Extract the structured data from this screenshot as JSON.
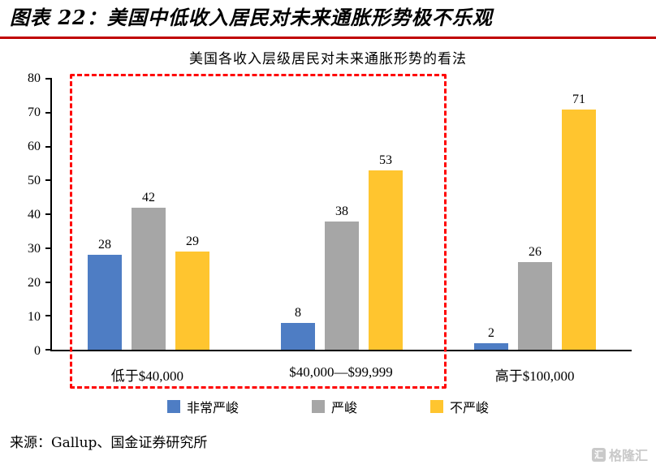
{
  "header": {
    "title": "图表 22：美国中低收入居民对未来通胀形势极不乐观"
  },
  "chart_data": {
    "type": "bar",
    "title": "美国各收入层级居民对未来通胀形势的看法",
    "categories": [
      "低于$40,000",
      "$40,000—$99,999",
      "高于$100,000"
    ],
    "series": [
      {
        "name": "非常严峻",
        "color": "#4e7dc4",
        "values": [
          28,
          8,
          2
        ]
      },
      {
        "name": "严峻",
        "color": "#a6a6a6",
        "values": [
          42,
          38,
          26
        ]
      },
      {
        "name": "不严峻",
        "color": "#ffc52f",
        "values": [
          29,
          53,
          71
        ]
      }
    ],
    "ylim": [
      0,
      80
    ],
    "ytick_step": 10,
    "grid": false,
    "legend_position": "bottom",
    "annotations": [
      "红色虚线框圈出 低于$40,000 与 $40,000—$99,999 两组"
    ]
  },
  "footer": {
    "source": "来源：Gallup、国金证券研究所",
    "watermark": "格隆汇",
    "watermark_icon_char": "汇"
  },
  "colors": {
    "header_rule": "#c00000",
    "dashed_box": "#ff0000"
  }
}
